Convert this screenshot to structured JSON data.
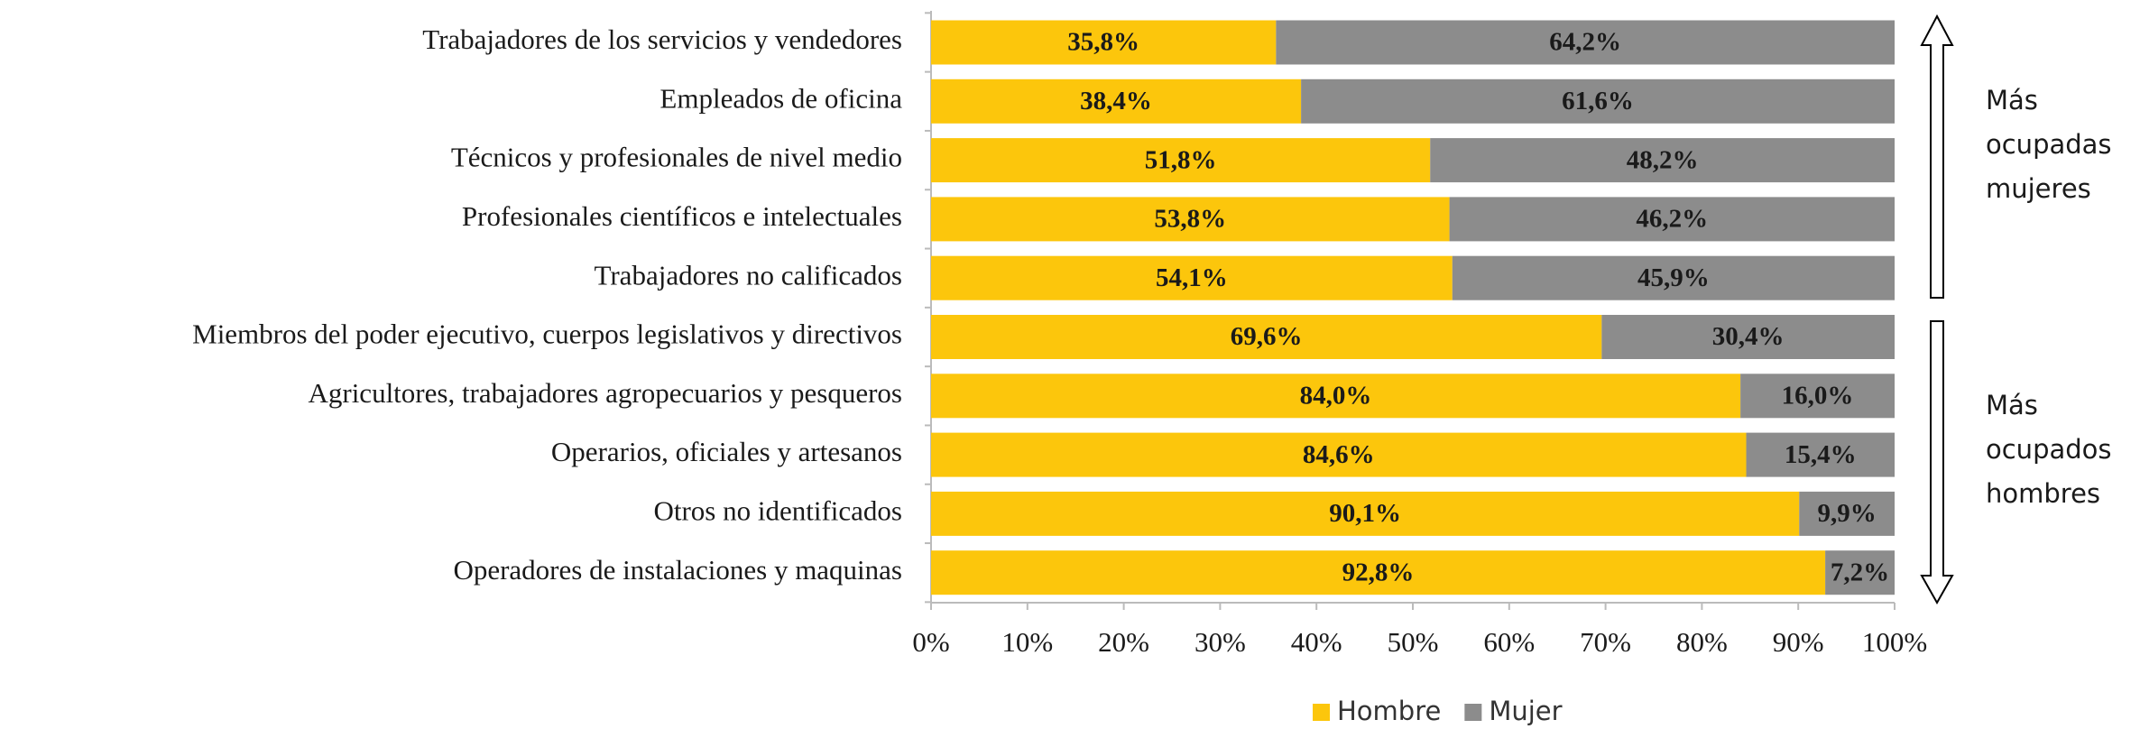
{
  "chart_data": {
    "type": "stacked-bar-horizontal",
    "categories": [
      "Trabajadores de los servicios y vendedores",
      "Empleados de oficina",
      "Técnicos y profesionales de nivel medio",
      "Profesionales científicos e intelectuales",
      "Trabajadores no calificados",
      "Miembros del poder ejecutivo, cuerpos legislativos y directivos",
      "Agricultores, trabajadores agropecuarios y pesqueros",
      "Operarios, oficiales y artesanos",
      "Otros no identificados",
      "Operadores de instalaciones y maquinas"
    ],
    "series": [
      {
        "name": "Hombre",
        "color": "#fcc60c",
        "label_color": "#1a1a1a",
        "values": [
          35.8,
          38.4,
          51.8,
          53.8,
          54.1,
          69.6,
          84.0,
          84.6,
          90.1,
          92.8
        ],
        "value_labels": [
          "35,8%",
          "38,4%",
          "51,8%",
          "53,8%",
          "54,1%",
          "69,6%",
          "84,0%",
          "84,6%",
          "90,1%",
          "92,8%"
        ]
      },
      {
        "name": "Mujer",
        "color": "#8c8c8c",
        "label_color": "#ffffff",
        "values": [
          64.2,
          61.6,
          48.2,
          46.2,
          45.9,
          30.4,
          16.0,
          15.4,
          9.9,
          7.2
        ],
        "value_labels": [
          "64,2%",
          "61,6%",
          "48,2%",
          "46,2%",
          "45,9%",
          "30,4%",
          "16,0%",
          "15,4%",
          "9,9%",
          "7,2%"
        ]
      }
    ],
    "xlim": [
      0,
      100
    ],
    "xticks": [
      {
        "value": 0,
        "label": "0%"
      },
      {
        "value": 10,
        "label": "10%"
      },
      {
        "value": 20,
        "label": "20%"
      },
      {
        "value": 30,
        "label": "30%"
      },
      {
        "value": 40,
        "label": "40%"
      },
      {
        "value": 50,
        "label": "50%"
      },
      {
        "value": 60,
        "label": "60%"
      },
      {
        "value": 70,
        "label": "70%"
      },
      {
        "value": 80,
        "label": "80%"
      },
      {
        "value": 90,
        "label": "90%"
      },
      {
        "value": 100,
        "label": "100%"
      }
    ],
    "legend": "bottom",
    "annotations": [
      {
        "lines": [
          "Más",
          "ocupadas",
          "mujeres"
        ]
      },
      {
        "lines": [
          "Más",
          "ocupados",
          "hombres"
        ]
      }
    ]
  }
}
